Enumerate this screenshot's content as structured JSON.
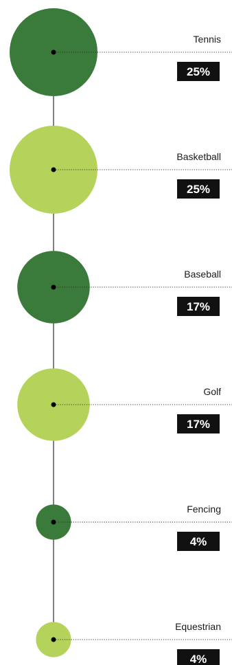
{
  "chart_data": {
    "type": "bubble-timeline",
    "title": "",
    "categories": [
      "Tennis",
      "Basketball",
      "Baseball",
      "Golf",
      "Fencing",
      "Equestrian"
    ],
    "values": [
      25,
      25,
      17,
      17,
      4,
      4
    ],
    "value_labels": [
      "25%",
      "25%",
      "17%",
      "17%",
      "4%",
      "4%"
    ],
    "unit": "%",
    "colors": [
      "#3a7a3a",
      "#b5d35a",
      "#3a7a3a",
      "#b5d35a",
      "#3a7a3a",
      "#b5d35a"
    ],
    "label_box_color": "#111111",
    "axis_color": "#000000"
  }
}
